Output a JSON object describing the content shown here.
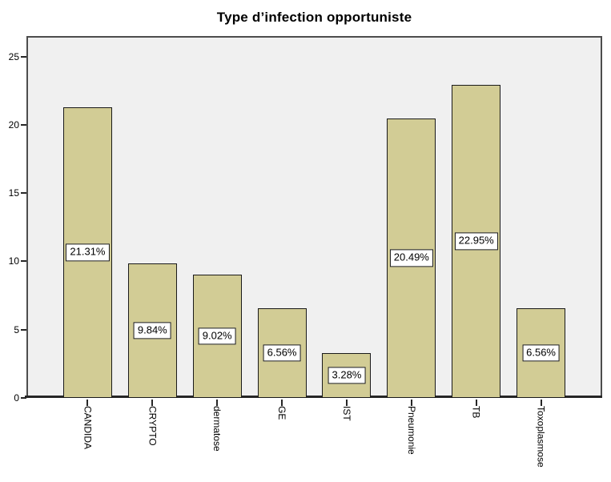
{
  "chart_data": {
    "type": "bar",
    "title": "Type d’infection opportuniste",
    "categories": [
      "CANDIDA",
      "CRYPTO",
      "dermatose",
      "GE",
      "IST",
      "Pneumonie",
      "TB",
      "Toxoplasmose"
    ],
    "values": [
      21.31,
      9.84,
      9.02,
      6.56,
      3.28,
      20.49,
      22.95,
      6.56
    ],
    "bar_labels": [
      "21.31%",
      "9.84%",
      "9.02%",
      "6.56%",
      "3.28%",
      "20.49%",
      "22.95%",
      "6.56%"
    ],
    "yticks": [
      0,
      5,
      10,
      15,
      20,
      25
    ],
    "ytick_labels": [
      "0",
      "5",
      "10",
      "15",
      "20",
      "25"
    ],
    "ylim": [
      0,
      26.5
    ],
    "xlabel": "",
    "ylabel": "",
    "grid": false,
    "legend": null,
    "bar_label_position": "middle-of-bar-boxed",
    "x_label_rotation": "vertical-top-to-bottom",
    "colors": {
      "bar_fill": "#d2cc95",
      "bar_border": "#1a1a1a",
      "plot_bg": "#f0f0f0",
      "frame": "#4d4d4d",
      "axis": "#262626",
      "label_box_bg": "#ffffff",
      "label_box_border": "#1a1a1a",
      "title_color": "#000000",
      "page_bg": "#ffffff"
    }
  }
}
